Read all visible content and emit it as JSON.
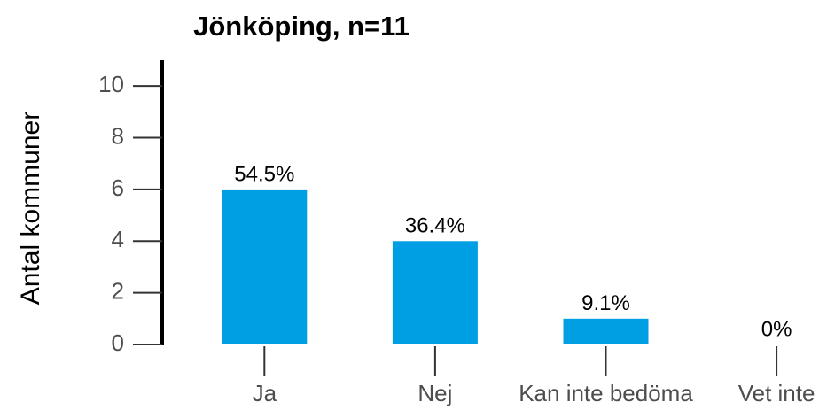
{
  "chart_data": {
    "type": "bar",
    "title": "Jönköping, n=11",
    "ylabel": "Antal kommuner",
    "categories": [
      "Ja",
      "Nej",
      "Kan inte bedöma",
      "Vet inte"
    ],
    "values": [
      6,
      4,
      1,
      0
    ],
    "value_labels": [
      "54.5%",
      "36.4%",
      "9.1%",
      "0%"
    ],
    "color": "#009fe3",
    "ylim": [
      0,
      11
    ],
    "yticks": [
      0,
      2,
      4,
      6,
      8,
      10
    ],
    "grid": false
  }
}
